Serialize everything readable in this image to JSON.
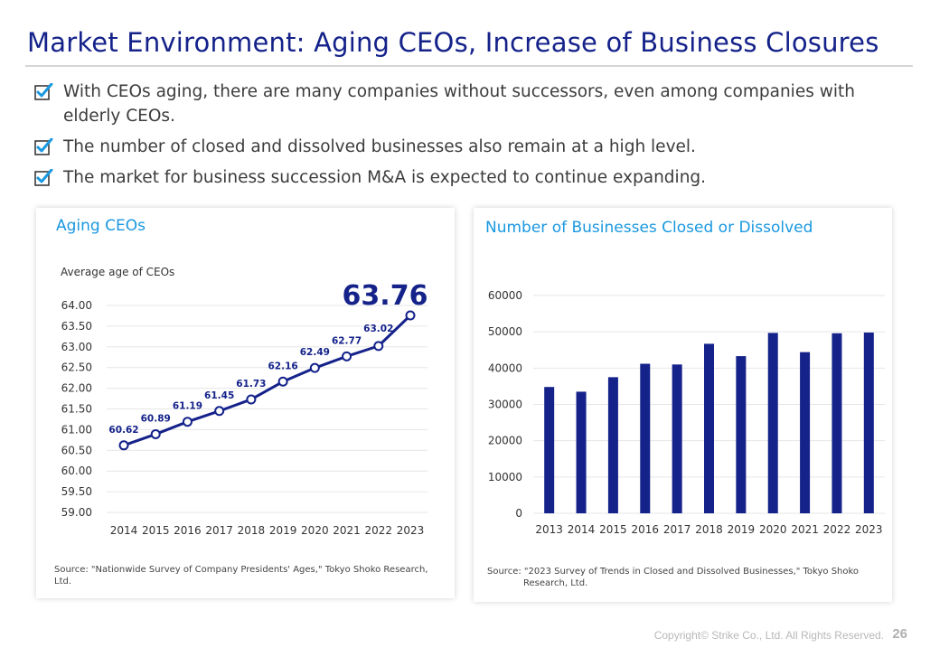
{
  "title": "Market Environment: Aging CEOs, Increase of Business Closures",
  "bullets": [
    "With CEOs aging, there are many companies without successors, even among companies with elderly CEOs.",
    "The number of closed and dissolved businesses also remain at a high level.",
    "The market for business succession M&A is expected to continue expanding."
  ],
  "colors": {
    "navy": "#14228a",
    "accent_blue": "#1a98e0",
    "check_blue": "#1a98e0"
  },
  "left_panel": {
    "title": "Aging CEOs",
    "source": "Source: \"Nationwide Survey of Company Presidents' Ages,\" Tokyo Shoko Research, Ltd."
  },
  "right_panel": {
    "title": "Number of Businesses Closed or Dissolved",
    "source": "Source: \"2023 Survey of Trends in Closed and Dissolved Businesses,\" Tokyo Shoko Research, Ltd."
  },
  "chart_data": [
    {
      "type": "line",
      "title": "Aging CEOs",
      "ylabel": "Average age of CEOs",
      "x": [
        "2014",
        "2015",
        "2016",
        "2017",
        "2018",
        "2019",
        "2020",
        "2021",
        "2022",
        "2023"
      ],
      "values": [
        60.62,
        60.89,
        61.19,
        61.45,
        61.73,
        62.16,
        62.49,
        62.77,
        63.02,
        63.76
      ],
      "data_labels": [
        "60.62",
        "60.89",
        "61.19",
        "61.45",
        "61.73",
        "62.16",
        "62.49",
        "62.77",
        "63.02",
        "63.76"
      ],
      "ylim": [
        59.0,
        64.0
      ],
      "yticks": [
        "59.00",
        "59.50",
        "60.00",
        "60.50",
        "61.00",
        "61.50",
        "62.00",
        "62.50",
        "63.00",
        "63.50",
        "64.00"
      ],
      "grid": true,
      "highlight_last": true
    },
    {
      "type": "bar",
      "title": "Number of Businesses Closed or Dissolved",
      "categories": [
        "2013",
        "2014",
        "2015",
        "2016",
        "2017",
        "2018",
        "2019",
        "2020",
        "2021",
        "2022",
        "2023"
      ],
      "values": [
        34800,
        33500,
        37500,
        41200,
        41000,
        46700,
        43300,
        49700,
        44400,
        49600,
        49800
      ],
      "ylim": [
        0,
        60000
      ],
      "yticks": [
        "0",
        "10000",
        "20000",
        "30000",
        "40000",
        "50000",
        "60000"
      ],
      "grid": true
    }
  ],
  "footer": {
    "copyright": "Copyright© Strike Co., Ltd. All Rights Reserved.",
    "page": "26"
  }
}
